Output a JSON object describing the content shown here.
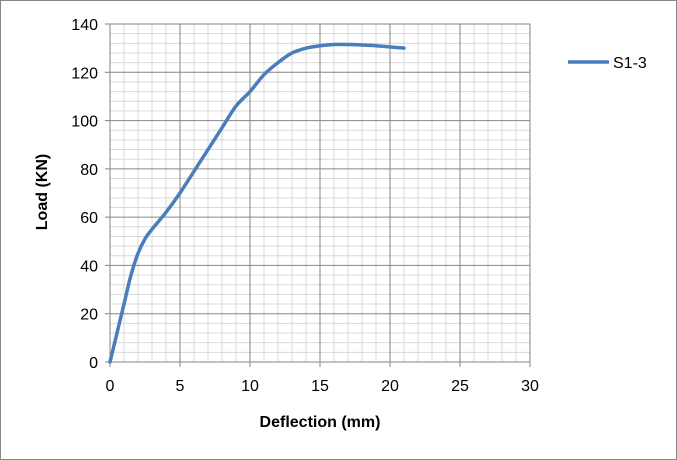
{
  "chart_data": {
    "type": "line",
    "xlabel": "Deflection (mm)",
    "ylabel": "Load (KN)",
    "xlim": [
      0,
      30
    ],
    "ylim": [
      0,
      140
    ],
    "x_ticks": [
      0,
      5,
      10,
      15,
      20,
      25,
      30
    ],
    "y_ticks": [
      0,
      20,
      40,
      60,
      80,
      100,
      120,
      140
    ],
    "x_minor_step": 1,
    "y_minor_step": 4,
    "grid": true,
    "legend_position": "right",
    "series": [
      {
        "name": "S1-3",
        "color": "#4a7ebb",
        "x": [
          0,
          0.5,
          1.0,
          1.5,
          2.0,
          2.5,
          3.0,
          4.0,
          5.0,
          6.0,
          7.0,
          8.0,
          9.0,
          10.0,
          11.0,
          12.0,
          13.0,
          14.0,
          15.0,
          16.0,
          17.0,
          18.0,
          19.0,
          20.0,
          21.0
        ],
        "y": [
          0,
          12,
          24,
          36,
          45,
          51,
          55,
          62,
          70,
          79,
          88,
          97,
          106,
          112,
          119,
          124,
          128,
          130,
          131,
          131.5,
          131.5,
          131.3,
          131,
          130.5,
          130
        ]
      }
    ]
  }
}
